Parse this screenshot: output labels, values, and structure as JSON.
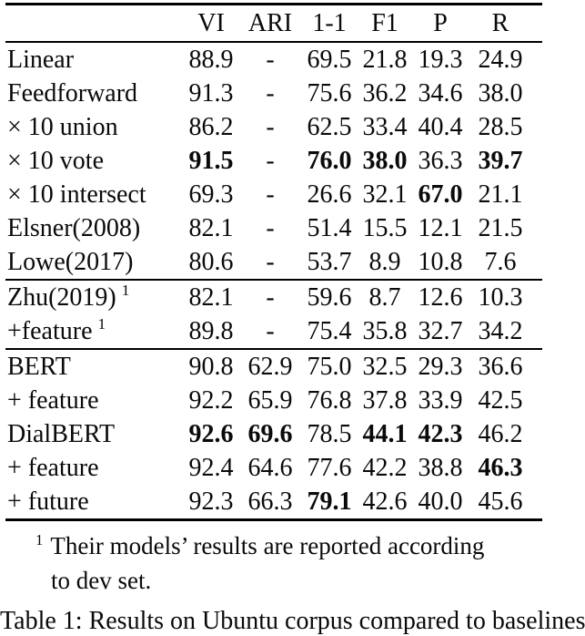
{
  "page": {
    "background": "#ffffff",
    "text_color": "#000000"
  },
  "table": {
    "columns": [
      "",
      "VI",
      "ARI",
      "1-1",
      "F1",
      "P",
      "R"
    ],
    "sections": [
      {
        "name": "baselines",
        "rows": [
          {
            "label": "Linear",
            "sup": "",
            "values": [
              "88.9",
              "-",
              "69.5",
              "21.8",
              "19.3",
              "24.9"
            ],
            "bold": [
              0,
              0,
              0,
              0,
              0,
              0
            ]
          },
          {
            "label": "Feedforward",
            "sup": "",
            "values": [
              "91.3",
              "-",
              "75.6",
              "36.2",
              "34.6",
              "38.0"
            ],
            "bold": [
              0,
              0,
              0,
              0,
              0,
              0
            ]
          },
          {
            "label": "× 10 union",
            "sup": "",
            "values": [
              "86.2",
              "-",
              "62.5",
              "33.4",
              "40.4",
              "28.5"
            ],
            "bold": [
              0,
              0,
              0,
              0,
              0,
              0
            ]
          },
          {
            "label": "× 10 vote",
            "sup": "",
            "values": [
              "91.5",
              "-",
              "76.0",
              "38.0",
              "36.3",
              "39.7"
            ],
            "bold": [
              1,
              0,
              1,
              1,
              0,
              1
            ]
          },
          {
            "label": "× 10 intersect",
            "sup": "",
            "values": [
              "69.3",
              "-",
              "26.6",
              "32.1",
              "67.0",
              "21.1"
            ],
            "bold": [
              0,
              0,
              0,
              0,
              1,
              0
            ]
          },
          {
            "label": "Elsner(2008)",
            "sup": "",
            "values": [
              "82.1",
              "-",
              "51.4",
              "15.5",
              "12.1",
              "21.5"
            ],
            "bold": [
              0,
              0,
              0,
              0,
              0,
              0
            ]
          },
          {
            "label": "Lowe(2017)",
            "sup": "",
            "values": [
              "80.6",
              "-",
              "53.7",
              "8.9",
              "10.8",
              "7.6"
            ],
            "bold": [
              0,
              0,
              0,
              0,
              0,
              0
            ]
          }
        ]
      },
      {
        "name": "zhu-2019",
        "rows": [
          {
            "label": "Zhu(2019)",
            "sup": "1",
            "values": [
              "82.1",
              "-",
              "59.6",
              "8.7",
              "12.6",
              "10.3"
            ],
            "bold": [
              0,
              0,
              0,
              0,
              0,
              0
            ]
          },
          {
            "label": "+feature",
            "sup": "1",
            "values": [
              "89.8",
              "-",
              "75.4",
              "35.8",
              "32.7",
              "34.2"
            ],
            "bold": [
              0,
              0,
              0,
              0,
              0,
              0
            ]
          }
        ]
      },
      {
        "name": "bert-models",
        "rows": [
          {
            "label": "BERT",
            "sup": "",
            "values": [
              "90.8",
              "62.9",
              "75.0",
              "32.5",
              "29.3",
              "36.6"
            ],
            "bold": [
              0,
              0,
              0,
              0,
              0,
              0
            ]
          },
          {
            "label": "+ feature",
            "sup": "",
            "values": [
              "92.2",
              "65.9",
              "76.8",
              "37.8",
              "33.9",
              "42.5"
            ],
            "bold": [
              0,
              0,
              0,
              0,
              0,
              0
            ]
          },
          {
            "label": "DialBERT",
            "sup": "",
            "values": [
              "92.6",
              "69.6",
              "78.5",
              "44.1",
              "42.3",
              "46.2"
            ],
            "bold": [
              1,
              1,
              0,
              1,
              1,
              0
            ]
          },
          {
            "label": "+ feature",
            "sup": "",
            "values": [
              "92.4",
              "64.6",
              "77.6",
              "42.2",
              "38.8",
              "46.3"
            ],
            "bold": [
              0,
              0,
              0,
              0,
              0,
              1
            ]
          },
          {
            "label": "+ future",
            "sup": "",
            "values": [
              "92.3",
              "66.3",
              "79.1",
              "42.6",
              "40.0",
              "45.6"
            ],
            "bold": [
              0,
              0,
              1,
              0,
              0,
              0
            ]
          }
        ]
      }
    ]
  },
  "footnote": {
    "marker": "1",
    "line1": "Their models’ results are reported according",
    "line2": "to dev set."
  },
  "caption": {
    "clipped": true,
    "text": "Table 1: Results on Ubuntu corpus compared to baselines"
  }
}
